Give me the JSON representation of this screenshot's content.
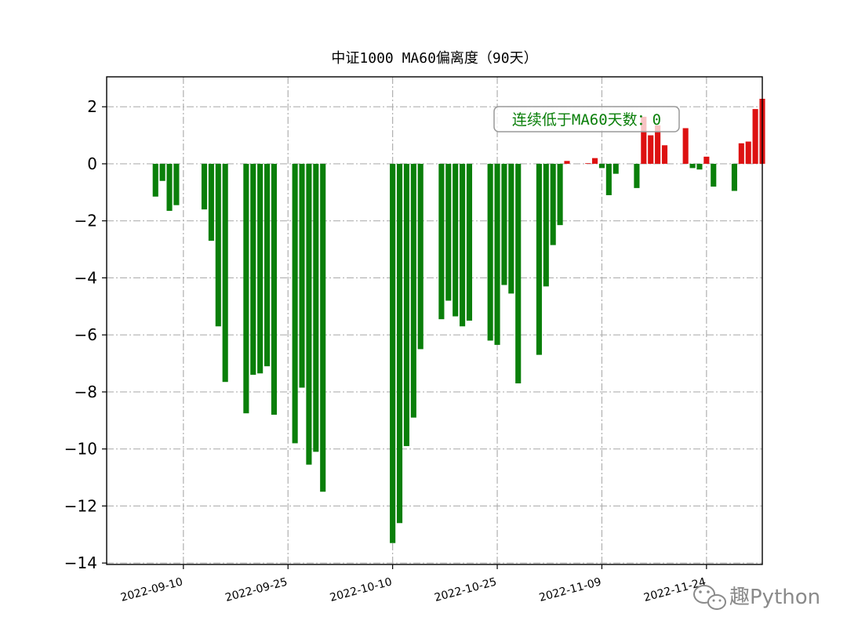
{
  "chart_data": {
    "type": "bar",
    "title": "中证1000 MA60偏离度（90天）",
    "xlabel": "",
    "ylabel": "",
    "x_axis_type": "date",
    "xlim": [
      "2022-08-30",
      "2022-12-02"
    ],
    "ylim": [
      -14.05,
      3.05
    ],
    "yticks": [
      2,
      0,
      -2,
      -4,
      -6,
      -8,
      -10,
      -12,
      -14
    ],
    "ytick_labels": [
      "2",
      "0",
      "−2",
      "−4",
      "−6",
      "−8",
      "−10",
      "−12",
      "−14"
    ],
    "xticks": [
      "2022-09-10",
      "2022-09-25",
      "2022-10-10",
      "2022-10-25",
      "2022-11-09",
      "2022-11-24"
    ],
    "xtick_labels": [
      "2022-09-10",
      "2022-09-25",
      "2022-10-10",
      "2022-10-25",
      "2022-11-09",
      "2022-11-24"
    ],
    "grid": true,
    "positive_color": "#dd1111",
    "negative_color": "#0a7f0a",
    "annotation": {
      "text": "连续低于MA60天数：0",
      "color": "#0a7f0a",
      "border_color": "#9a9a9a"
    },
    "dates": [
      "2022-09-06",
      "2022-09-07",
      "2022-09-08",
      "2022-09-09",
      "2022-09-13",
      "2022-09-14",
      "2022-09-15",
      "2022-09-16",
      "2022-09-19",
      "2022-09-20",
      "2022-09-21",
      "2022-09-22",
      "2022-09-23",
      "2022-09-26",
      "2022-09-27",
      "2022-09-28",
      "2022-09-29",
      "2022-09-30",
      "2022-10-10",
      "2022-10-11",
      "2022-10-12",
      "2022-10-13",
      "2022-10-14",
      "2022-10-17",
      "2022-10-18",
      "2022-10-19",
      "2022-10-20",
      "2022-10-21",
      "2022-10-24",
      "2022-10-25",
      "2022-10-26",
      "2022-10-27",
      "2022-10-28",
      "2022-10-31",
      "2022-11-01",
      "2022-11-02",
      "2022-11-03",
      "2022-11-04",
      "2022-11-07",
      "2022-11-08",
      "2022-11-09",
      "2022-11-10",
      "2022-11-11",
      "2022-11-14",
      "2022-11-15",
      "2022-11-16",
      "2022-11-17",
      "2022-11-18",
      "2022-11-21",
      "2022-11-22",
      "2022-11-23",
      "2022-11-24",
      "2022-11-25",
      "2022-11-28",
      "2022-11-29",
      "2022-11-30",
      "2022-12-01",
      "2022-12-02"
    ],
    "values": [
      -1.15,
      -0.6,
      -1.65,
      -1.45,
      -1.6,
      -2.7,
      -5.7,
      -7.65,
      -8.75,
      -7.4,
      -7.35,
      -7.1,
      -8.8,
      -9.8,
      -7.85,
      -10.55,
      -10.1,
      -11.5,
      -13.3,
      -12.6,
      -9.9,
      -8.9,
      -6.5,
      -5.45,
      -4.8,
      -5.35,
      -5.7,
      -5.5,
      -6.2,
      -6.35,
      -4.25,
      -4.55,
      -7.7,
      -6.7,
      -4.3,
      -2.85,
      -2.15,
      0.1,
      0.02,
      0.2,
      -0.15,
      -1.1,
      -0.35,
      -0.85,
      1.65,
      1.0,
      1.35,
      0.65,
      1.25,
      -0.15,
      -0.2,
      0.25,
      -0.8,
      -0.95,
      0.72,
      0.78,
      1.92,
      2.28
    ]
  },
  "watermark": {
    "text": "趣Python",
    "icon": "wechat-icon"
  }
}
